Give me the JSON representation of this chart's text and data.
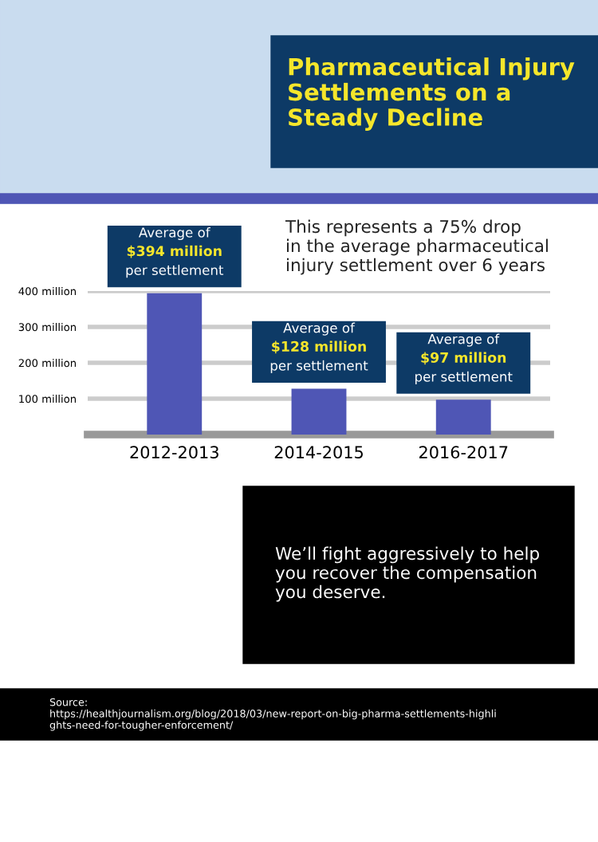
{
  "chart_data": {
    "type": "bar",
    "title": "Pharmaceutical Injury\nSettlements on a\nSteady Decline",
    "categories": [
      "2012-2013",
      "2014-2015",
      "2016-2017"
    ],
    "values": [
      394,
      128,
      97
    ],
    "color": "#4f56b5",
    "value_labels": [
      "Average of\n$394 million\nper settlement",
      "Average of\n$128 million\nper settlement",
      "Average of\n$97 million\nper settlement"
    ],
    "ylim": [
      0,
      400
    ],
    "yticks": [
      {
        "value": 100,
        "label": "100 million"
      },
      {
        "value": 200,
        "label": "200 million"
      },
      {
        "value": 300,
        "label": "300 million"
      },
      {
        "value": 400,
        "label": "400 million"
      }
    ],
    "grid": "y",
    "annotations": [
      "This represents a 75% drop\nin the average pharmaceutical\ninjury settlement over 6 years",
      "We’ll fight aggressively to help\nyou recover the compensation\nyou deserve.",
      "Source:\nhttps://healthjournalism.org/blog/2018/03/new-report-on-big-pharma-settlements-highli\nghts-need-for-tougher-enforcement/"
    ]
  }
}
